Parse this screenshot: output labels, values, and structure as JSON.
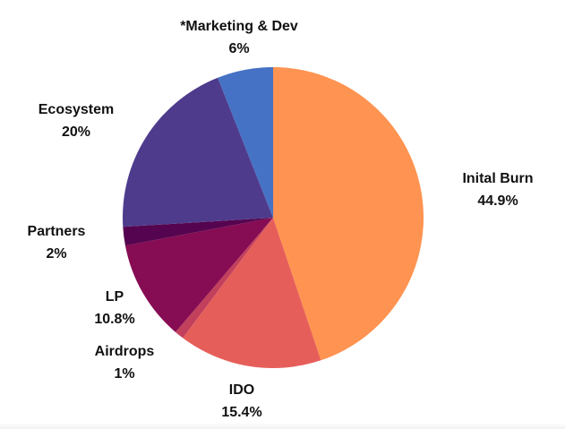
{
  "chart_data": {
    "type": "pie",
    "title": "",
    "start_angle_deg": 0,
    "direction": "clockwise",
    "legend": "none",
    "slices": [
      {
        "label": "Inital Burn",
        "value": 44.9,
        "value_label": "44.9%",
        "color": "#FF9351"
      },
      {
        "label": "IDO",
        "value": 15.4,
        "value_label": "15.4%",
        "color": "#E65E5A"
      },
      {
        "label": "Airdrops",
        "value": 1,
        "value_label": "1%",
        "color": "#C2405C"
      },
      {
        "label": "LP",
        "value": 10.8,
        "value_label": "10.8%",
        "color": "#860C53"
      },
      {
        "label": "Partners",
        "value": 2,
        "value_label": "2%",
        "color": "#55054F"
      },
      {
        "label": "Ecosystem",
        "value": 20,
        "value_label": "20%",
        "color": "#4F3B8C"
      },
      {
        "label": "*Marketing & Dev",
        "value": 6,
        "value_label": "6%",
        "color": "#4572C4"
      }
    ]
  }
}
